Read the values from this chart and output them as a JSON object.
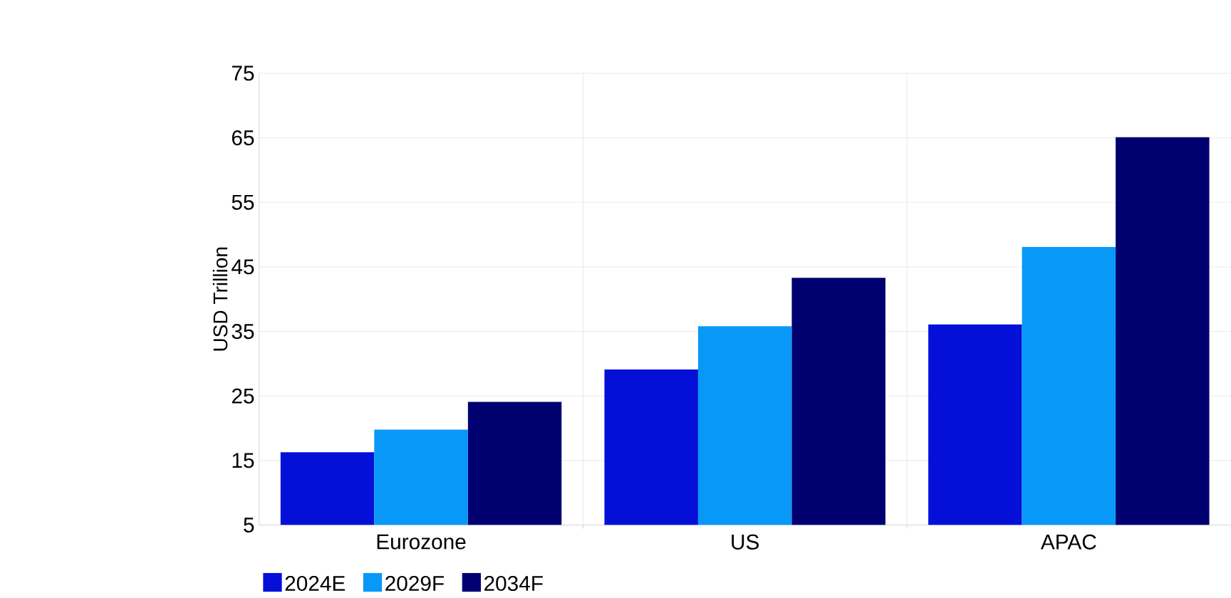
{
  "chart_data": {
    "type": "bar",
    "ylabel": "USD Trillion",
    "categories": [
      "Eurozone",
      "US",
      "APAC"
    ],
    "series": [
      {
        "name": "2024E",
        "color": "#0410d8",
        "values": [
          16.3,
          29.1,
          36.1
        ]
      },
      {
        "name": "2029F",
        "color": "#0898f8",
        "values": [
          19.8,
          35.8,
          48.1
        ]
      },
      {
        "name": "2034F",
        "color": "#000070",
        "values": [
          24.1,
          43.3,
          65.1
        ]
      }
    ],
    "ylim": [
      5,
      75
    ],
    "yticks": [
      5,
      15,
      25,
      35,
      45,
      55,
      65,
      75
    ],
    "grid": true,
    "legend": "bottom left"
  }
}
